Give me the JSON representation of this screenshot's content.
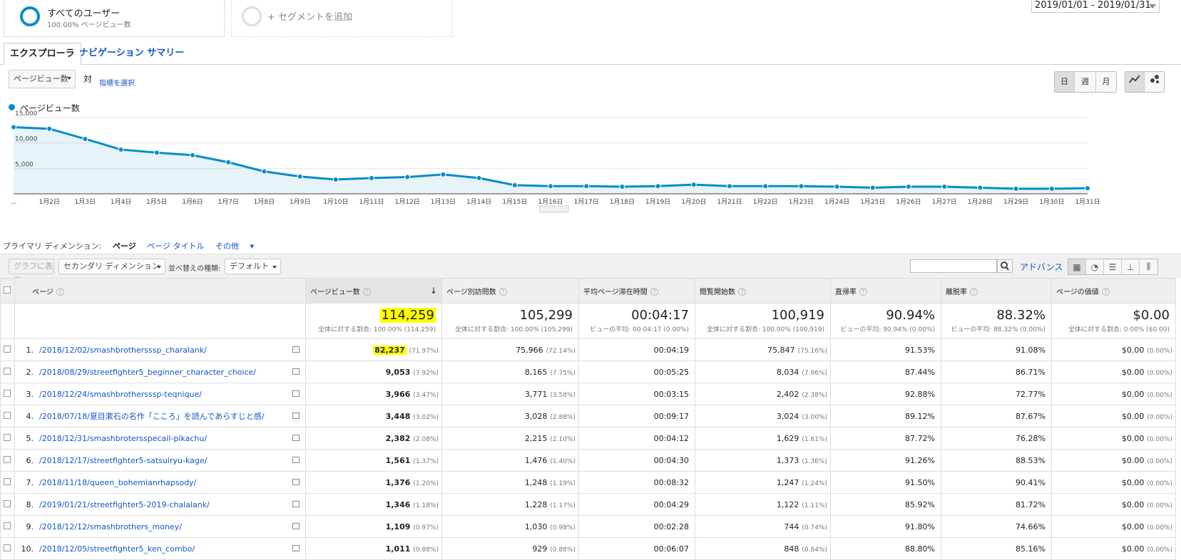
{
  "segments": {
    "active": {
      "title": "すべてのユーザー",
      "subtitle": "100.00% ページビュー数"
    },
    "add": {
      "label": "+ セグメントを追加"
    }
  },
  "date_range": "2019/01/01 - 2019/01/31",
  "tabs": [
    {
      "label": "エクスプローラ"
    },
    {
      "label": "ナビゲーション サマリー"
    }
  ],
  "controls": {
    "metric_select": "ページビュー数",
    "vs_label": "対",
    "choose_metric": "指標を選択",
    "period_buttons": [
      "日",
      "週",
      "月"
    ]
  },
  "chart_data": {
    "type": "area",
    "legend": [
      "ページビュー数"
    ],
    "x": [
      "...",
      "1月2日",
      "1月3日",
      "1月4日",
      "1月5日",
      "1月6日",
      "1月7日",
      "1月8日",
      "1月9日",
      "1月10日",
      "1月11日",
      "1月12日",
      "1月13日",
      "1月14日",
      "1月15日",
      "1月16日",
      "1月17日",
      "1月18日",
      "1月19日",
      "1月20日",
      "1月21日",
      "1月22日",
      "1月23日",
      "1月24日",
      "1月25日",
      "1月26日",
      "1月27日",
      "1月28日",
      "1月29日",
      "1月30日",
      "1月31日"
    ],
    "series": [
      {
        "name": "ページビュー数",
        "values": [
          13100,
          12800,
          10800,
          8700,
          8100,
          7600,
          6200,
          4400,
          3400,
          2800,
          3100,
          3300,
          3800,
          3100,
          1700,
          1500,
          1500,
          1400,
          1500,
          1800,
          1500,
          1500,
          1500,
          1400,
          1200,
          1400,
          1400,
          1200,
          1000,
          1000,
          1100
        ]
      }
    ],
    "yticks": [
      "5,000",
      "10,000",
      "15,000"
    ],
    "ylim": [
      0,
      15000
    ],
    "grid": true,
    "color": "#058dc7"
  },
  "dimensions": {
    "label": "プライマリ ディメンション:",
    "active": "ページ",
    "other": "ページ タイトル",
    "more": "その他"
  },
  "toolbar": {
    "graph_btn": "グラフに表示",
    "secondary": "セカンダリ ディメンション",
    "sort_label": "並べ替えの種類:",
    "sort_value": "デフォルト",
    "advanced": "アドバンス"
  },
  "table": {
    "headers": [
      "ページ",
      "ページビュー数",
      "ページ別訪問数",
      "平均ページ滞在時間",
      "閲覧開始数",
      "直帰率",
      "離脱率",
      "ページの価値"
    ],
    "totals": [
      {
        "value": "114,259",
        "sub": "全体に対する割合: 100.00% (114,259)"
      },
      {
        "value": "105,299",
        "sub": "全体に対する割合: 100.00% (105,299)"
      },
      {
        "value": "00:04:17",
        "sub": "ビューの平均: 00:04:17 (0.00%)"
      },
      {
        "value": "100,919",
        "sub": "全体に対する割合: 100.00% (100,919)"
      },
      {
        "value": "90.94%",
        "sub": "ビューの平均: 90.94% (0.00%)"
      },
      {
        "value": "88.32%",
        "sub": "ビューの平均: 88.32% (0.00%)"
      },
      {
        "value": "$0.00",
        "sub": "全体に対する割合: 0.00% ($0.00)"
      }
    ],
    "rows": [
      {
        "idx": "1.",
        "page": "/2018/12/02/smashbrothersssp_charalank/",
        "pv": "82,237",
        "pv_pct": "(71.97%)",
        "uv": "75,966",
        "uv_pct": "(72.14%)",
        "time": "00:04:19",
        "ent": "75,847",
        "ent_pct": "(75.16%)",
        "bounce": "91.53%",
        "exit": "91.08%",
        "val": "$0.00",
        "val_pct": "(0.00%)"
      },
      {
        "idx": "2.",
        "page": "/2018/08/29/streetfighter5_beginner_character_choice/",
        "pv": "9,053",
        "pv_pct": "(7.92%)",
        "uv": "8,165",
        "uv_pct": "(7.75%)",
        "time": "00:05:25",
        "ent": "8,034",
        "ent_pct": "(7.96%)",
        "bounce": "87.44%",
        "exit": "86.71%",
        "val": "$0.00",
        "val_pct": "(0.00%)"
      },
      {
        "idx": "3.",
        "page": "/2018/12/24/smashbrothersssp-teqnique/",
        "pv": "3,966",
        "pv_pct": "(3.47%)",
        "uv": "3,771",
        "uv_pct": "(3.58%)",
        "time": "00:03:15",
        "ent": "2,402",
        "ent_pct": "(2.38%)",
        "bounce": "92.88%",
        "exit": "72.77%",
        "val": "$0.00",
        "val_pct": "(0.00%)"
      },
      {
        "idx": "4.",
        "page": "/2018/07/18/夏目漱石の名作「こころ」を読んであらすじと感/",
        "pv": "3,448",
        "pv_pct": "(3.02%)",
        "uv": "3,028",
        "uv_pct": "(2.88%)",
        "time": "00:09:17",
        "ent": "3,024",
        "ent_pct": "(3.00%)",
        "bounce": "89.12%",
        "exit": "87.67%",
        "val": "$0.00",
        "val_pct": "(0.00%)"
      },
      {
        "idx": "5.",
        "page": "/2018/12/31/smashbrotersspecail-pikachu/",
        "pv": "2,382",
        "pv_pct": "(2.08%)",
        "uv": "2,215",
        "uv_pct": "(2.10%)",
        "time": "00:04:12",
        "ent": "1,629",
        "ent_pct": "(1.61%)",
        "bounce": "87.72%",
        "exit": "76.28%",
        "val": "$0.00",
        "val_pct": "(0.00%)"
      },
      {
        "idx": "6.",
        "page": "/2018/12/17/streetfighter5-satsuiryu-kage/",
        "pv": "1,561",
        "pv_pct": "(1.37%)",
        "uv": "1,476",
        "uv_pct": "(1.40%)",
        "time": "00:04:30",
        "ent": "1,373",
        "ent_pct": "(1.36%)",
        "bounce": "91.26%",
        "exit": "88.53%",
        "val": "$0.00",
        "val_pct": "(0.00%)"
      },
      {
        "idx": "7.",
        "page": "/2018/11/18/queen_bohemianrhapsody/",
        "pv": "1,376",
        "pv_pct": "(1.20%)",
        "uv": "1,248",
        "uv_pct": "(1.19%)",
        "time": "00:08:32",
        "ent": "1,247",
        "ent_pct": "(1.24%)",
        "bounce": "91.50%",
        "exit": "90.41%",
        "val": "$0.00",
        "val_pct": "(0.00%)"
      },
      {
        "idx": "8.",
        "page": "/2019/01/21/streetfighter5-2019-chalalank/",
        "pv": "1,346",
        "pv_pct": "(1.18%)",
        "uv": "1,228",
        "uv_pct": "(1.17%)",
        "time": "00:04:29",
        "ent": "1,122",
        "ent_pct": "(1.11%)",
        "bounce": "85.92%",
        "exit": "81.72%",
        "val": "$0.00",
        "val_pct": "(0.00%)"
      },
      {
        "idx": "9.",
        "page": "/2018/12/12/smashbrothers_money/",
        "pv": "1,109",
        "pv_pct": "(0.97%)",
        "uv": "1,030",
        "uv_pct": "(0.98%)",
        "time": "00:02:28",
        "ent": "744",
        "ent_pct": "(0.74%)",
        "bounce": "91.80%",
        "exit": "74.66%",
        "val": "$0.00",
        "val_pct": "(0.00%)"
      },
      {
        "idx": "10.",
        "page": "/2018/12/05/streetfighter5_ken_combo/",
        "pv": "1,011",
        "pv_pct": "(0.88%)",
        "uv": "929",
        "uv_pct": "(0.88%)",
        "time": "00:06:07",
        "ent": "848",
        "ent_pct": "(0.84%)",
        "bounce": "88.80%",
        "exit": "85.16%",
        "val": "$0.00",
        "val_pct": "(0.00%)"
      }
    ]
  }
}
